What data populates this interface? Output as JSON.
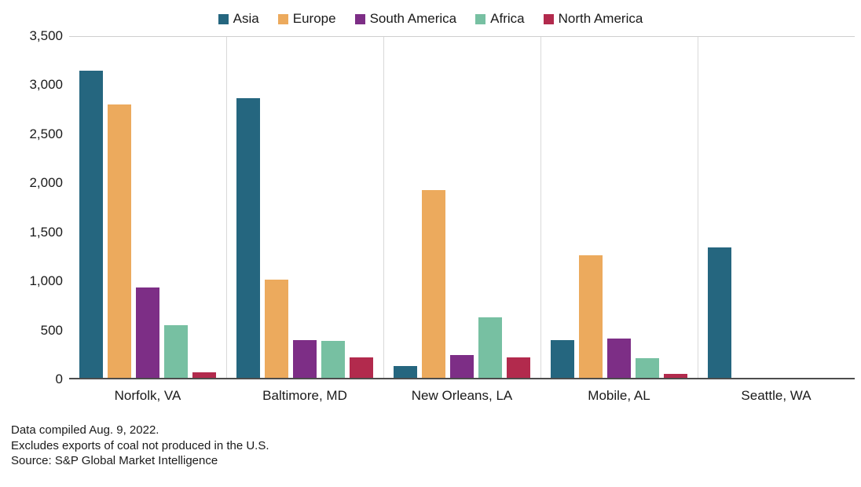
{
  "chart_data": {
    "type": "bar",
    "categories": [
      "Norfolk, VA",
      "Baltimore, MD",
      "New Orleans, LA",
      "Mobile, AL",
      "Seattle, WA"
    ],
    "series": [
      {
        "name": "Asia",
        "color": "#25667f",
        "values": [
          3150,
          2870,
          120,
          390,
          1340
        ]
      },
      {
        "name": "Europe",
        "color": "#ecaa5d",
        "values": [
          2810,
          1010,
          1930,
          1260,
          0
        ]
      },
      {
        "name": "South America",
        "color": "#7d2e86",
        "values": [
          930,
          390,
          230,
          400,
          0
        ]
      },
      {
        "name": "Africa",
        "color": "#77c0a2",
        "values": [
          540,
          380,
          620,
          200,
          0
        ]
      },
      {
        "name": "North America",
        "color": "#b22a4d",
        "values": [
          60,
          210,
          210,
          40,
          0
        ]
      }
    ],
    "ylim": [
      0,
      3500
    ],
    "yticks": [
      {
        "value": 0,
        "label": "0"
      },
      {
        "value": 500,
        "label": "500"
      },
      {
        "value": 1000,
        "label": "1,000"
      },
      {
        "value": 1500,
        "label": "1,500"
      },
      {
        "value": 2000,
        "label": "2,000"
      },
      {
        "value": 2500,
        "label": "2,500"
      },
      {
        "value": 3000,
        "label": "3,000"
      },
      {
        "value": 3500,
        "label": "3,500"
      }
    ],
    "legend_position": "top",
    "grid": "vertical-category-separators",
    "title": ""
  },
  "footer": {
    "line1": "Data compiled Aug. 9, 2022.",
    "line2": "Excludes exports of coal not produced in the U.S.",
    "line3": "Source: S&P Global Market Intelligence"
  }
}
